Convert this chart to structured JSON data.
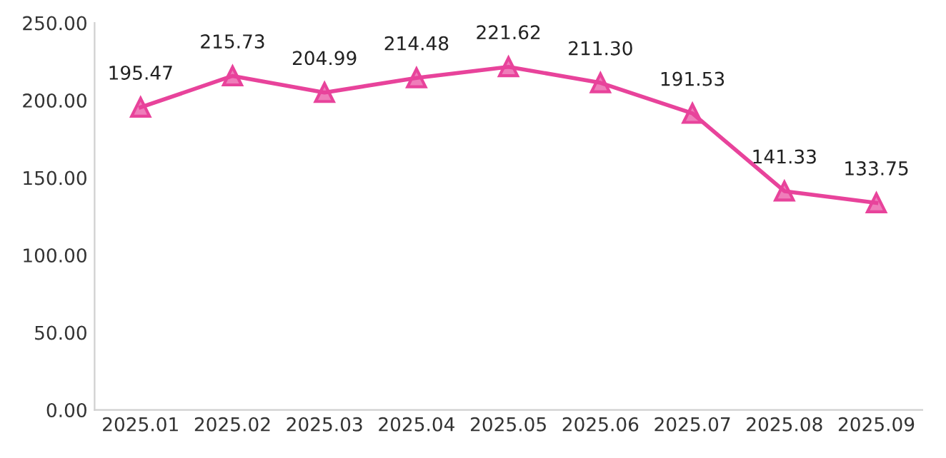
{
  "chart_data": {
    "type": "line",
    "categories": [
      "2025.01",
      "2025.02",
      "2025.03",
      "2025.04",
      "2025.05",
      "2025.06",
      "2025.07",
      "2025.08",
      "2025.09"
    ],
    "series": [
      {
        "color": "#e8439b",
        "values": [
          195.47,
          215.73,
          204.99,
          214.48,
          221.62,
          211.3,
          191.53,
          141.33,
          133.75
        ],
        "value_labels": [
          "195.47",
          "215.73",
          "204.99",
          "214.48",
          "221.62",
          "211.30",
          "191.53",
          "141.33",
          "133.75"
        ]
      }
    ],
    "ylim": [
      0,
      250
    ],
    "yticks": [
      {
        "value": 0,
        "label": "0.00"
      },
      {
        "value": 50,
        "label": "50.00"
      },
      {
        "value": 100,
        "label": "100.00"
      },
      {
        "value": 150,
        "label": "150.00"
      },
      {
        "value": 200,
        "label": "200.00"
      },
      {
        "value": 250,
        "label": "250.00"
      }
    ],
    "grid": false,
    "legend": false,
    "marker": "triangle",
    "line_style": "solid"
  }
}
